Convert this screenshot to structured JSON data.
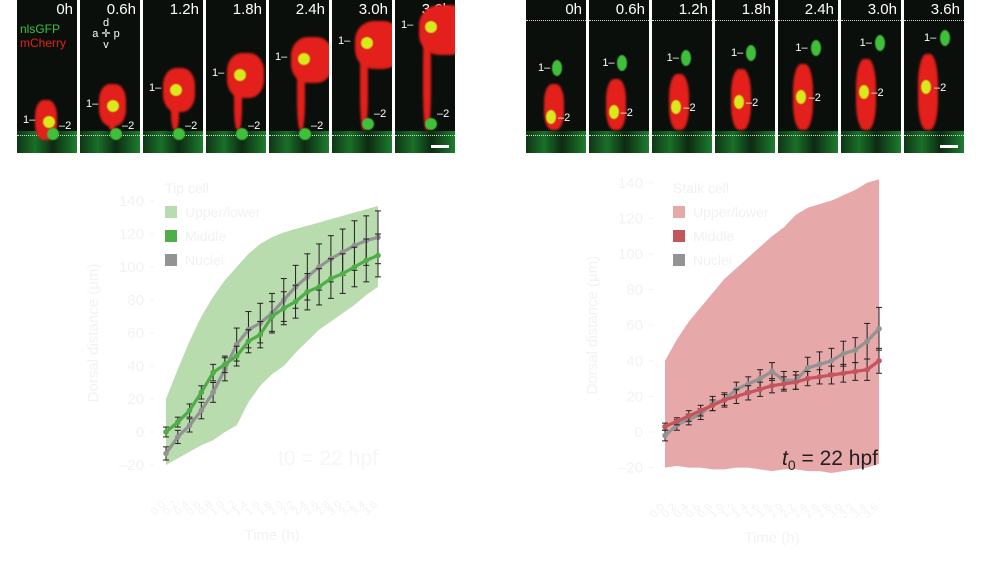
{
  "figure": {
    "left_strip": {
      "channel_labels": {
        "green": "nlsGFP",
        "red": "mCherry"
      },
      "orientation": {
        "d": "d",
        "v": "v",
        "a": "a",
        "p": "p"
      },
      "panels": [
        {
          "time": "0h",
          "label1": "1–",
          "label2": "–2"
        },
        {
          "time": "0.6h",
          "label1": "1–",
          "label2": "–2"
        },
        {
          "time": "1.2h",
          "label1": "1–",
          "label2": "–2"
        },
        {
          "time": "1.8h",
          "label1": "1–",
          "label2": "–2"
        },
        {
          "time": "2.4h",
          "label1": "1–",
          "label2": "–2"
        },
        {
          "time": "3.0h",
          "label1": "1–",
          "label2": "–2"
        },
        {
          "time": "3.6h",
          "label1": "1–",
          "label2": "–2"
        }
      ]
    },
    "right_strip": {
      "panels": [
        {
          "time": "0h",
          "label1": "1–",
          "label2": "–2"
        },
        {
          "time": "0.6h",
          "label1": "1–",
          "label2": "–2"
        },
        {
          "time": "1.2h",
          "label1": "1–",
          "label2": "–2"
        },
        {
          "time": "1.8h",
          "label1": "1–",
          "label2": "–2"
        },
        {
          "time": "2.4h",
          "label1": "1–",
          "label2": "–2"
        },
        {
          "time": "3.0h",
          "label1": "1–",
          "label2": "–2"
        },
        {
          "time": "3.6h",
          "label1": "1–",
          "label2": "–2"
        }
      ]
    }
  },
  "colors": {
    "tip_band": "#b9dcae",
    "tip_middle": "#4fae4a",
    "stalk_band": "#e6a8a8",
    "stalk_middle": "#c4545e",
    "nuclei": "#939393",
    "errorbar": "#231f20",
    "faint_text": "#f2f2f2"
  },
  "chart_data": [
    {
      "type": "line",
      "title": "Tip cell",
      "xlabel": "Time (h)",
      "ylabel": "Dorsal distance (µm)",
      "ylim": [
        -20,
        140
      ],
      "yticks": [
        -20,
        0,
        20,
        40,
        60,
        80,
        100,
        120,
        140
      ],
      "xlim": [
        0,
        3.6
      ],
      "x": [
        0,
        0.2,
        0.4,
        0.6,
        0.8,
        1.0,
        1.2,
        1.4,
        1.6,
        1.8,
        2.0,
        2.2,
        2.4,
        2.6,
        2.8,
        3.0,
        3.2,
        3.4,
        3.6
      ],
      "legend": [
        "Upper/lower",
        "Middle",
        "Nuclei"
      ],
      "series": [
        {
          "name": "Middle",
          "values": [
            0,
            6,
            13,
            24,
            36,
            41,
            46,
            55,
            59,
            70,
            75,
            79,
            85,
            88,
            93,
            96,
            100,
            104,
            107
          ],
          "error": [
            3,
            3,
            4,
            4,
            5,
            5,
            6,
            7,
            8,
            9,
            10,
            10,
            11,
            11,
            12,
            12,
            12,
            13,
            13
          ]
        },
        {
          "name": "Nuclei",
          "values": [
            -13,
            -3,
            4,
            13,
            24,
            38,
            53,
            62,
            66,
            72,
            80,
            88,
            94,
            100,
            105,
            109,
            113,
            116,
            118
          ],
          "error": [
            4,
            4,
            4,
            5,
            6,
            7,
            10,
            11,
            12,
            12,
            13,
            13,
            14,
            14,
            14,
            14,
            15,
            15,
            16
          ]
        },
        {
          "name": "Upper/lower",
          "upper": [
            20,
            38,
            55,
            70,
            82,
            92,
            100,
            108,
            114,
            118,
            121,
            123,
            125,
            127,
            129,
            131,
            133,
            135,
            137
          ],
          "lower": [
            -20,
            -16,
            -12,
            -8,
            -5,
            0,
            4,
            18,
            28,
            35,
            40,
            48,
            55,
            62,
            67,
            72,
            77,
            83,
            88
          ]
        }
      ],
      "annotation": "t0 = 22 hpf"
    },
    {
      "type": "line",
      "title": "Stalk cell",
      "xlabel": "Time (h)",
      "ylabel": "Dorsal distance (µm)",
      "ylim": [
        -20,
        140
      ],
      "yticks": [
        -20,
        0,
        20,
        40,
        60,
        80,
        100,
        120,
        140
      ],
      "xlim": [
        0,
        3.6
      ],
      "x": [
        0,
        0.2,
        0.4,
        0.6,
        0.8,
        1.0,
        1.2,
        1.4,
        1.6,
        1.8,
        2.0,
        2.2,
        2.4,
        2.6,
        2.8,
        3.0,
        3.2,
        3.4,
        3.6
      ],
      "legend": [
        "Upper/lower",
        "Middle",
        "Nuclei"
      ],
      "series": [
        {
          "name": "Middle",
          "values": [
            3,
            6,
            9,
            12,
            15,
            18,
            20,
            22,
            24,
            26,
            27,
            28,
            30,
            31,
            32,
            33,
            34,
            35,
            40
          ],
          "error": [
            2,
            2,
            3,
            3,
            3,
            3,
            4,
            4,
            4,
            4,
            4,
            4,
            4,
            4,
            5,
            5,
            5,
            6,
            7
          ]
        },
        {
          "name": "Nuclei",
          "values": [
            -2,
            4,
            7,
            10,
            16,
            18,
            24,
            27,
            30,
            34,
            29,
            29,
            36,
            38,
            40,
            44,
            46,
            51,
            58
          ],
          "error": [
            3,
            3,
            3,
            3,
            4,
            4,
            4,
            4,
            5,
            5,
            5,
            5,
            6,
            7,
            7,
            7,
            7,
            10,
            12
          ]
        },
        {
          "name": "Upper/lower",
          "upper": [
            40,
            52,
            62,
            70,
            78,
            86,
            92,
            98,
            104,
            110,
            115,
            122,
            126,
            128,
            130,
            133,
            136,
            140,
            142
          ],
          "lower": [
            -20,
            -19,
            -20,
            -20,
            -21,
            -21,
            -20,
            -20,
            -21,
            -22,
            -21,
            -21,
            -22,
            -22,
            -23,
            -22,
            -21,
            -20,
            -18
          ]
        }
      ],
      "annotation": "t0 = 22 hpf"
    }
  ]
}
